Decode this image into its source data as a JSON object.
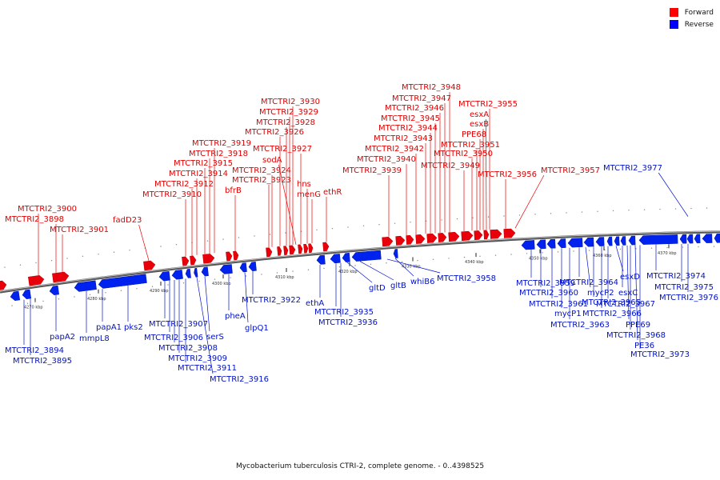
{
  "caption": "Mycobacterium tuberculosis CTRI-2, complete genome. - 0..4398525",
  "legend": [
    {
      "label": "Forward",
      "color": "#ff0000"
    },
    {
      "label": "Reverse",
      "color": "#0000ff"
    }
  ],
  "colors": {
    "forward": "#e8000b",
    "reverse": "#0022ee",
    "backbone": "#7f7f7f"
  },
  "ticks": [
    "4270 kbp",
    "4280 kbp",
    "4290 kbp",
    "4300 kbp",
    "4310 kbp",
    "4320 kbp",
    "4330 kbp",
    "4340 kbp",
    "4350 kbp",
    "4360 kbp",
    "4370 kbp"
  ],
  "forward_labels": [
    "MTCTRI2_3900",
    "MTCTRI2_3898",
    "MTCTRI2_3901",
    "fadD23",
    "MTCTRI2_3919",
    "MTCTRI2_3918",
    "MTCTRI2_3915",
    "MTCTRI2_3914",
    "MTCTRI2_3912",
    "MTCTRI2_3910",
    "bfrB",
    "MTCTRI2_3930",
    "MTCTRI2_3929",
    "MTCTRI2_3928",
    "MTCTRI2_3926",
    "MTCTRI2_3927",
    "sodA",
    "MTCTRI2_3924",
    "MTCTRI2_3923",
    "hns",
    "menG",
    "ethR",
    "MTCTRI2_3948",
    "MTCTRI2_3947",
    "MTCTRI2_3946",
    "MTCTRI2_3945",
    "MTCTRI2_3944",
    "MTCTRI2_3943",
    "MTCTRI2_3942",
    "MTCTRI2_3940",
    "MTCTRI2_3939",
    "MTCTRI2_3955",
    "esxA",
    "esxB",
    "PPE68",
    "MTCTRI2_3951",
    "MTCTRI2_3950",
    "MTCTRI2_3949",
    "MTCTRI2_3956",
    "MTCTRI2_3957"
  ],
  "reverse_labels": [
    "MTCTRI2_3977",
    "MTCTRI2_3894",
    "MTCTRI2_3895",
    "papA2",
    "mmpL8",
    "papA1",
    "pks2",
    "MTCTRI2_3907",
    "MTCTRI2_3906",
    "MTCTRI2_3908",
    "MTCTRI2_3909",
    "MTCTRI2_3911",
    "MTCTRI2_3916",
    "serS",
    "pheA",
    "glpQ1",
    "MTCTRI2_3922",
    "ethA",
    "MTCTRI2_3935",
    "MTCTRI2_3936",
    "gltD",
    "gltB",
    "whiB6",
    "MTCTRI2_3958",
    "MTCTRI2_3959",
    "MTCTRI2_3960",
    "MTCTRI2_3961",
    "mycP1",
    "MTCTRI2_3963",
    "MTCTRI2_3964",
    "mycP2",
    "MTCTRI2_3965",
    "MTCTRI2_3966",
    "MTCTRI2_3967",
    "esxD",
    "esxC",
    "PPE69",
    "MTCTRI2_3968",
    "PE36",
    "MTCTRI2_3973",
    "MTCTRI2_3974",
    "MTCTRI2_3975",
    "MTCTRI2_3976"
  ]
}
